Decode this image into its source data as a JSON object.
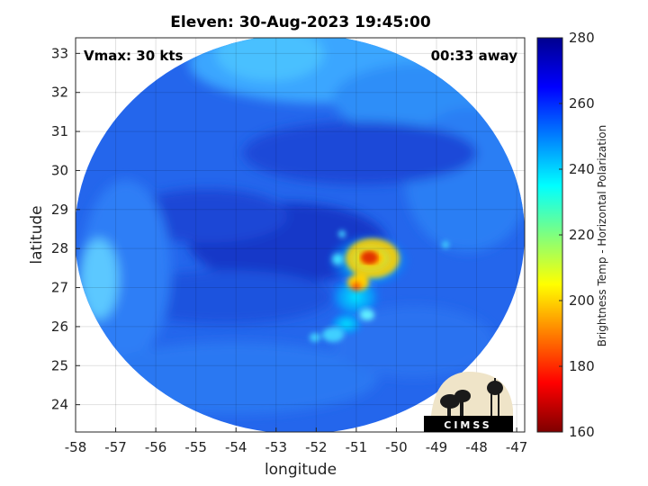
{
  "title": "Eleven: 30-Aug-2023 19:45:00",
  "vmax_label": "Vmax: 30 kts",
  "time_label": "00:33 away",
  "logo_text": "CIMSS",
  "colors": {
    "background_disc": "#1f5fe8",
    "colormap": [
      "#7f0000",
      "#ff0000",
      "#ff7f00",
      "#ffff00",
      "#7fff7f",
      "#00ffff",
      "#007fff",
      "#0000ff",
      "#00008f"
    ]
  },
  "chart_data": {
    "type": "heatmap",
    "title": "Eleven: 30-Aug-2023 19:45:00",
    "xlabel": "longitude",
    "ylabel": "latitude",
    "xlim": [
      -58,
      -46.8
    ],
    "ylim": [
      23.3,
      33.4
    ],
    "xticks": [
      -58,
      -57,
      -56,
      -55,
      -54,
      -53,
      -52,
      -51,
      -50,
      -49,
      -48,
      -47
    ],
    "yticks": [
      24,
      25,
      26,
      27,
      28,
      29,
      30,
      31,
      32,
      33
    ],
    "grid": true,
    "colorbar": {
      "label": "Brightness Temp - Horizontal Polarization",
      "range": [
        160,
        280
      ],
      "ticks": [
        160,
        180,
        200,
        220,
        240,
        260,
        280
      ],
      "colormap": "jet",
      "placement": "right"
    },
    "swath_center": {
      "lon": -52.4,
      "lat": 28.4
    },
    "features": [
      {
        "name": "deep convection core",
        "lon": -50.7,
        "lat": 27.7,
        "value": 185
      },
      {
        "name": "convective band",
        "lon": -50.9,
        "lat": 27.0,
        "value": 195
      },
      {
        "name": "circulation center",
        "lon": -52.2,
        "lat": 27.9,
        "value": 258
      },
      {
        "name": "warm dry region north",
        "lon": -52.5,
        "lat": 32.0,
        "value": 245
      }
    ]
  }
}
